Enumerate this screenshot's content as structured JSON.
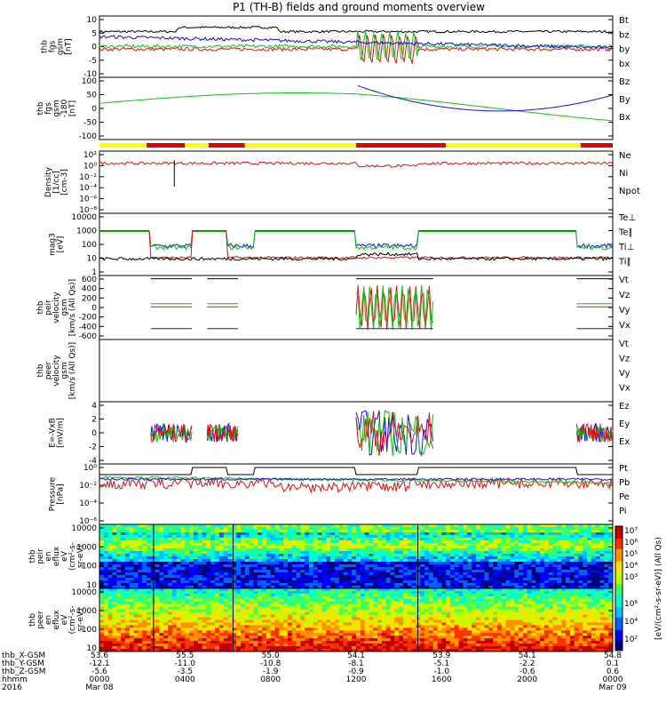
{
  "chart_data": {
    "type": "line",
    "title": "P1 (TH-B) fields and ground moments overview",
    "x_start_hhmm": "0000",
    "x_end_hhmm": "0000",
    "panels": [
      {
        "id": "fgs_gsm",
        "ylabel": [
          "thb",
          "fgs",
          "gsm",
          "[nT]"
        ],
        "ticks": [
          "10",
          "5",
          "0",
          "-5",
          "-10"
        ],
        "ylim": [
          -10,
          10
        ],
        "legend": [
          {
            "name": "Bt",
            "color": "#000000"
          },
          {
            "name": "bz",
            "color": "#e01010"
          },
          {
            "name": "by",
            "color": "#10c010"
          },
          {
            "name": "bx",
            "color": "#1010e0"
          }
        ]
      },
      {
        "id": "fgs_gsm_180",
        "ylabel": [
          "thb",
          "fgs",
          "gsm",
          "-180",
          "[nT]"
        ],
        "ticks": [
          "100",
          "50",
          "0",
          "-50",
          "-100"
        ],
        "ylim": [
          -120,
          100
        ],
        "legend": [
          {
            "name": "Bz",
            "color": "#e01010"
          },
          {
            "name": "By",
            "color": "#10c010"
          },
          {
            "name": "Bx",
            "color": "#1010e0"
          }
        ]
      },
      {
        "id": "density",
        "ylabel": [
          "Density",
          "[1/cc]",
          "[cm-3]"
        ],
        "ticks": [
          "10²",
          "10⁰",
          "10⁻²",
          "10⁻⁴",
          "10⁻⁶",
          "10⁻⁸"
        ],
        "ylim_log": [
          -9,
          2.5
        ],
        "legend": [
          {
            "name": "Ne",
            "color": "#e01010"
          },
          {
            "name": "Ni",
            "color": "#000000"
          },
          {
            "name": "Npot",
            "color": "#1010e0"
          }
        ]
      },
      {
        "id": "temperature",
        "ylabel": [
          "mag3",
          "[eV]"
        ],
        "ticks": [
          "10000",
          "1000",
          "100",
          "10",
          "1"
        ],
        "ylim_log": [
          0,
          4.1
        ],
        "legend": [
          {
            "name": "Te⊥",
            "color": "#e01010"
          },
          {
            "name": "Te∥",
            "color": "#000000"
          },
          {
            "name": "Ti⊥",
            "color": "#10c010"
          },
          {
            "name": "Ti∥",
            "color": "#10c010"
          }
        ]
      },
      {
        "id": "peir_velocity",
        "ylabel": [
          "thb",
          "peir",
          "velocity",
          "gsm",
          "[km/s (All Qs)]"
        ],
        "ticks": [
          "600",
          "400",
          "200",
          "0",
          "-200",
          "-400",
          "-600"
        ],
        "ylim": [
          -500,
          500
        ],
        "legend": [
          {
            "name": "Vt",
            "color": "#000000"
          },
          {
            "name": "Vz",
            "color": "#e01010"
          },
          {
            "name": "Vy",
            "color": "#10c010"
          },
          {
            "name": "Vx",
            "color": "#1010e0"
          }
        ]
      },
      {
        "id": "peer_velocity",
        "ylabel": [
          "thb",
          "peer",
          "velocity",
          "gsm",
          "[km/s (All Qs)]"
        ],
        "ticks": [],
        "legend": [
          {
            "name": "Vt",
            "color": "#000000"
          },
          {
            "name": "Vz",
            "color": "#e01010"
          },
          {
            "name": "Vy",
            "color": "#10c010"
          },
          {
            "name": "Vx",
            "color": "#1010e0"
          }
        ]
      },
      {
        "id": "efield",
        "ylabel": [
          "E=-VxB",
          "[mV/m]"
        ],
        "ticks": [
          "4",
          "2",
          "0",
          "-2",
          "-4"
        ],
        "ylim": [
          -4,
          4
        ],
        "legend": [
          {
            "name": "Ez",
            "color": "#e01010"
          },
          {
            "name": "Ey",
            "color": "#10c010"
          },
          {
            "name": "Ex",
            "color": "#1010e0"
          }
        ]
      },
      {
        "id": "pressure",
        "ylabel": [
          "Pressure",
          "[nPa]"
        ],
        "ticks": [
          "10⁰",
          "10⁻²",
          "10⁻⁴",
          "10⁻⁶"
        ],
        "ylim_log": [
          -8,
          0.5
        ],
        "legend": [
          {
            "name": "Pt",
            "color": "#000000"
          },
          {
            "name": "Pb",
            "color": "#e01010"
          },
          {
            "name": "Pe",
            "color": "#10c010"
          },
          {
            "name": "Pi",
            "color": "#1010e0"
          }
        ]
      },
      {
        "id": "peir_spec",
        "type": "heatmap",
        "ylabel": [
          "thb",
          "peir",
          "en",
          "eflux",
          "eV",
          "(cm²-s-",
          "sr-eV)"
        ],
        "ticks": [
          "10000",
          "1000",
          "100",
          "10"
        ]
      },
      {
        "id": "peer_spec",
        "type": "heatmap",
        "ylabel": [
          "thb",
          "peer",
          "en",
          "eflux",
          "eV",
          "(cm²-s-",
          "sr-eV)"
        ],
        "ticks": [
          "10000",
          "1000",
          "100",
          "10"
        ]
      }
    ],
    "colorbar_label": "[eV/(cm²-s-sr-eV)] (All Qs)",
    "colorbar_ticks_top": [
      "10⁷",
      "10⁶",
      "10⁵",
      "10⁴",
      "10³"
    ],
    "colorbar_ticks_bottom": [
      "10⁶",
      "10⁴",
      "10²"
    ],
    "position_table": {
      "row_labels": [
        "thb_X-GSM",
        "thb_Y-GSM",
        "thb_Z-GSM",
        "hhmm",
        "2016"
      ],
      "columns": [
        [
          "53.6",
          "-12.1",
          "-5.6",
          "0000",
          "Mar 08"
        ],
        [
          "55.5",
          "-11.0",
          "-3.5",
          "0400",
          ""
        ],
        [
          "55.0",
          "-10.8",
          "-1.9",
          "0800",
          ""
        ],
        [
          "54.1",
          "-8.1",
          "-0.9",
          "1200",
          ""
        ],
        [
          "53.9",
          "-5.1",
          "-1.0",
          "1600",
          ""
        ],
        [
          "54.1",
          "-2.2",
          "-0.6",
          "2000",
          ""
        ],
        [
          "54.8",
          "0.1",
          "0.6",
          "0000",
          "Mar 09"
        ]
      ]
    },
    "mode_bar": [
      {
        "from": 0,
        "to": 2.2,
        "color": "#ffff00"
      },
      {
        "from": 2.2,
        "to": 4.0,
        "color": "#e00000"
      },
      {
        "from": 4.0,
        "to": 5.1,
        "color": "#ffff00"
      },
      {
        "from": 5.1,
        "to": 6.8,
        "color": "#e00000"
      },
      {
        "from": 6.8,
        "to": 12.0,
        "color": "#ffff00"
      },
      {
        "from": 12.0,
        "to": 16.2,
        "color": "#e00000"
      },
      {
        "from": 16.2,
        "to": 22.5,
        "color": "#ffff00"
      },
      {
        "from": 22.5,
        "to": 24.0,
        "color": "#e00000"
      }
    ]
  }
}
